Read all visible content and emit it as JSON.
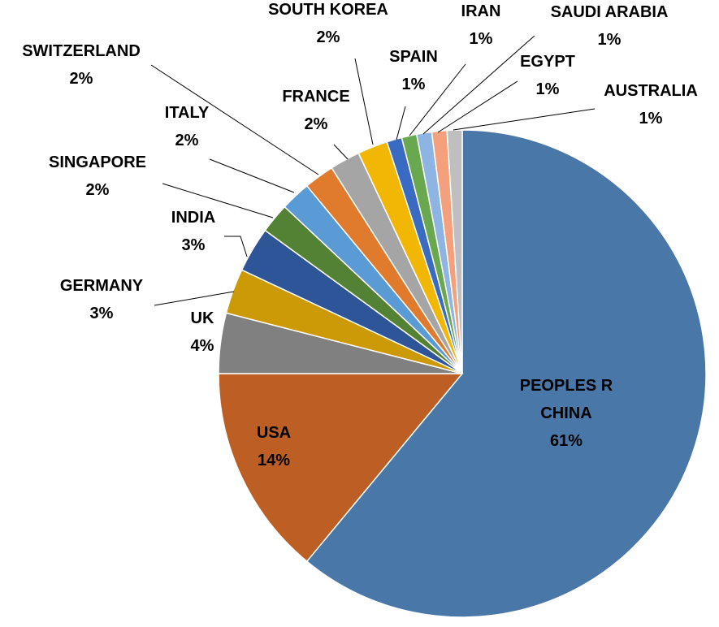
{
  "chart_data": {
    "type": "pie",
    "title": "",
    "slices": [
      {
        "name": "PEOPLES R CHINA",
        "label_lines": [
          "PEOPLES R",
          "CHINA"
        ],
        "value": 61,
        "label": "61%",
        "color": "#4877A8"
      },
      {
        "name": "USA",
        "label_lines": [
          "USA"
        ],
        "value": 14,
        "label": "14%",
        "color": "#BD5F24"
      },
      {
        "name": "UK",
        "label_lines": [
          "UK"
        ],
        "value": 4,
        "label": "4%",
        "color": "#808080"
      },
      {
        "name": "GERMANY",
        "label_lines": [
          "GERMANY"
        ],
        "value": 3,
        "label": "3%",
        "color": "#CC9A06"
      },
      {
        "name": "INDIA",
        "label_lines": [
          "INDIA"
        ],
        "value": 3,
        "label": "3%",
        "color": "#2E5597"
      },
      {
        "name": "SINGAPORE",
        "label_lines": [
          "SINGAPORE"
        ],
        "value": 2,
        "label": "2%",
        "color": "#548235"
      },
      {
        "name": "ITALY",
        "label_lines": [
          "ITALY"
        ],
        "value": 2,
        "label": "2%",
        "color": "#5B9BD5"
      },
      {
        "name": "SWITZERLAND",
        "label_lines": [
          "SWITZERLAND"
        ],
        "value": 2,
        "label": "2%",
        "color": "#E07B2E"
      },
      {
        "name": "FRANCE",
        "label_lines": [
          "FRANCE"
        ],
        "value": 2,
        "label": "2%",
        "color": "#A5A5A5"
      },
      {
        "name": "SOUTH KOREA",
        "label_lines": [
          "SOUTH KOREA"
        ],
        "value": 2,
        "label": "2%",
        "color": "#F2B705"
      },
      {
        "name": "SPAIN",
        "label_lines": [
          "SPAIN"
        ],
        "value": 1,
        "label": "1%",
        "color": "#3A6BC3"
      },
      {
        "name": "IRAN",
        "label_lines": [
          "IRAN"
        ],
        "value": 1,
        "label": "1%",
        "color": "#6AA84F"
      },
      {
        "name": "SAUDI ARABIA",
        "label_lines": [
          "SAUDI ARABIA"
        ],
        "value": 1,
        "label": "1%",
        "color": "#8DB4E2"
      },
      {
        "name": "EGYPT",
        "label_lines": [
          "EGYPT"
        ],
        "value": 1,
        "label": "1%",
        "color": "#F4A07C"
      },
      {
        "name": "AUSTRALIA",
        "label_lines": [
          "AUSTRALIA"
        ],
        "value": 1,
        "label": "1%",
        "color": "#BFBFBF"
      }
    ]
  }
}
